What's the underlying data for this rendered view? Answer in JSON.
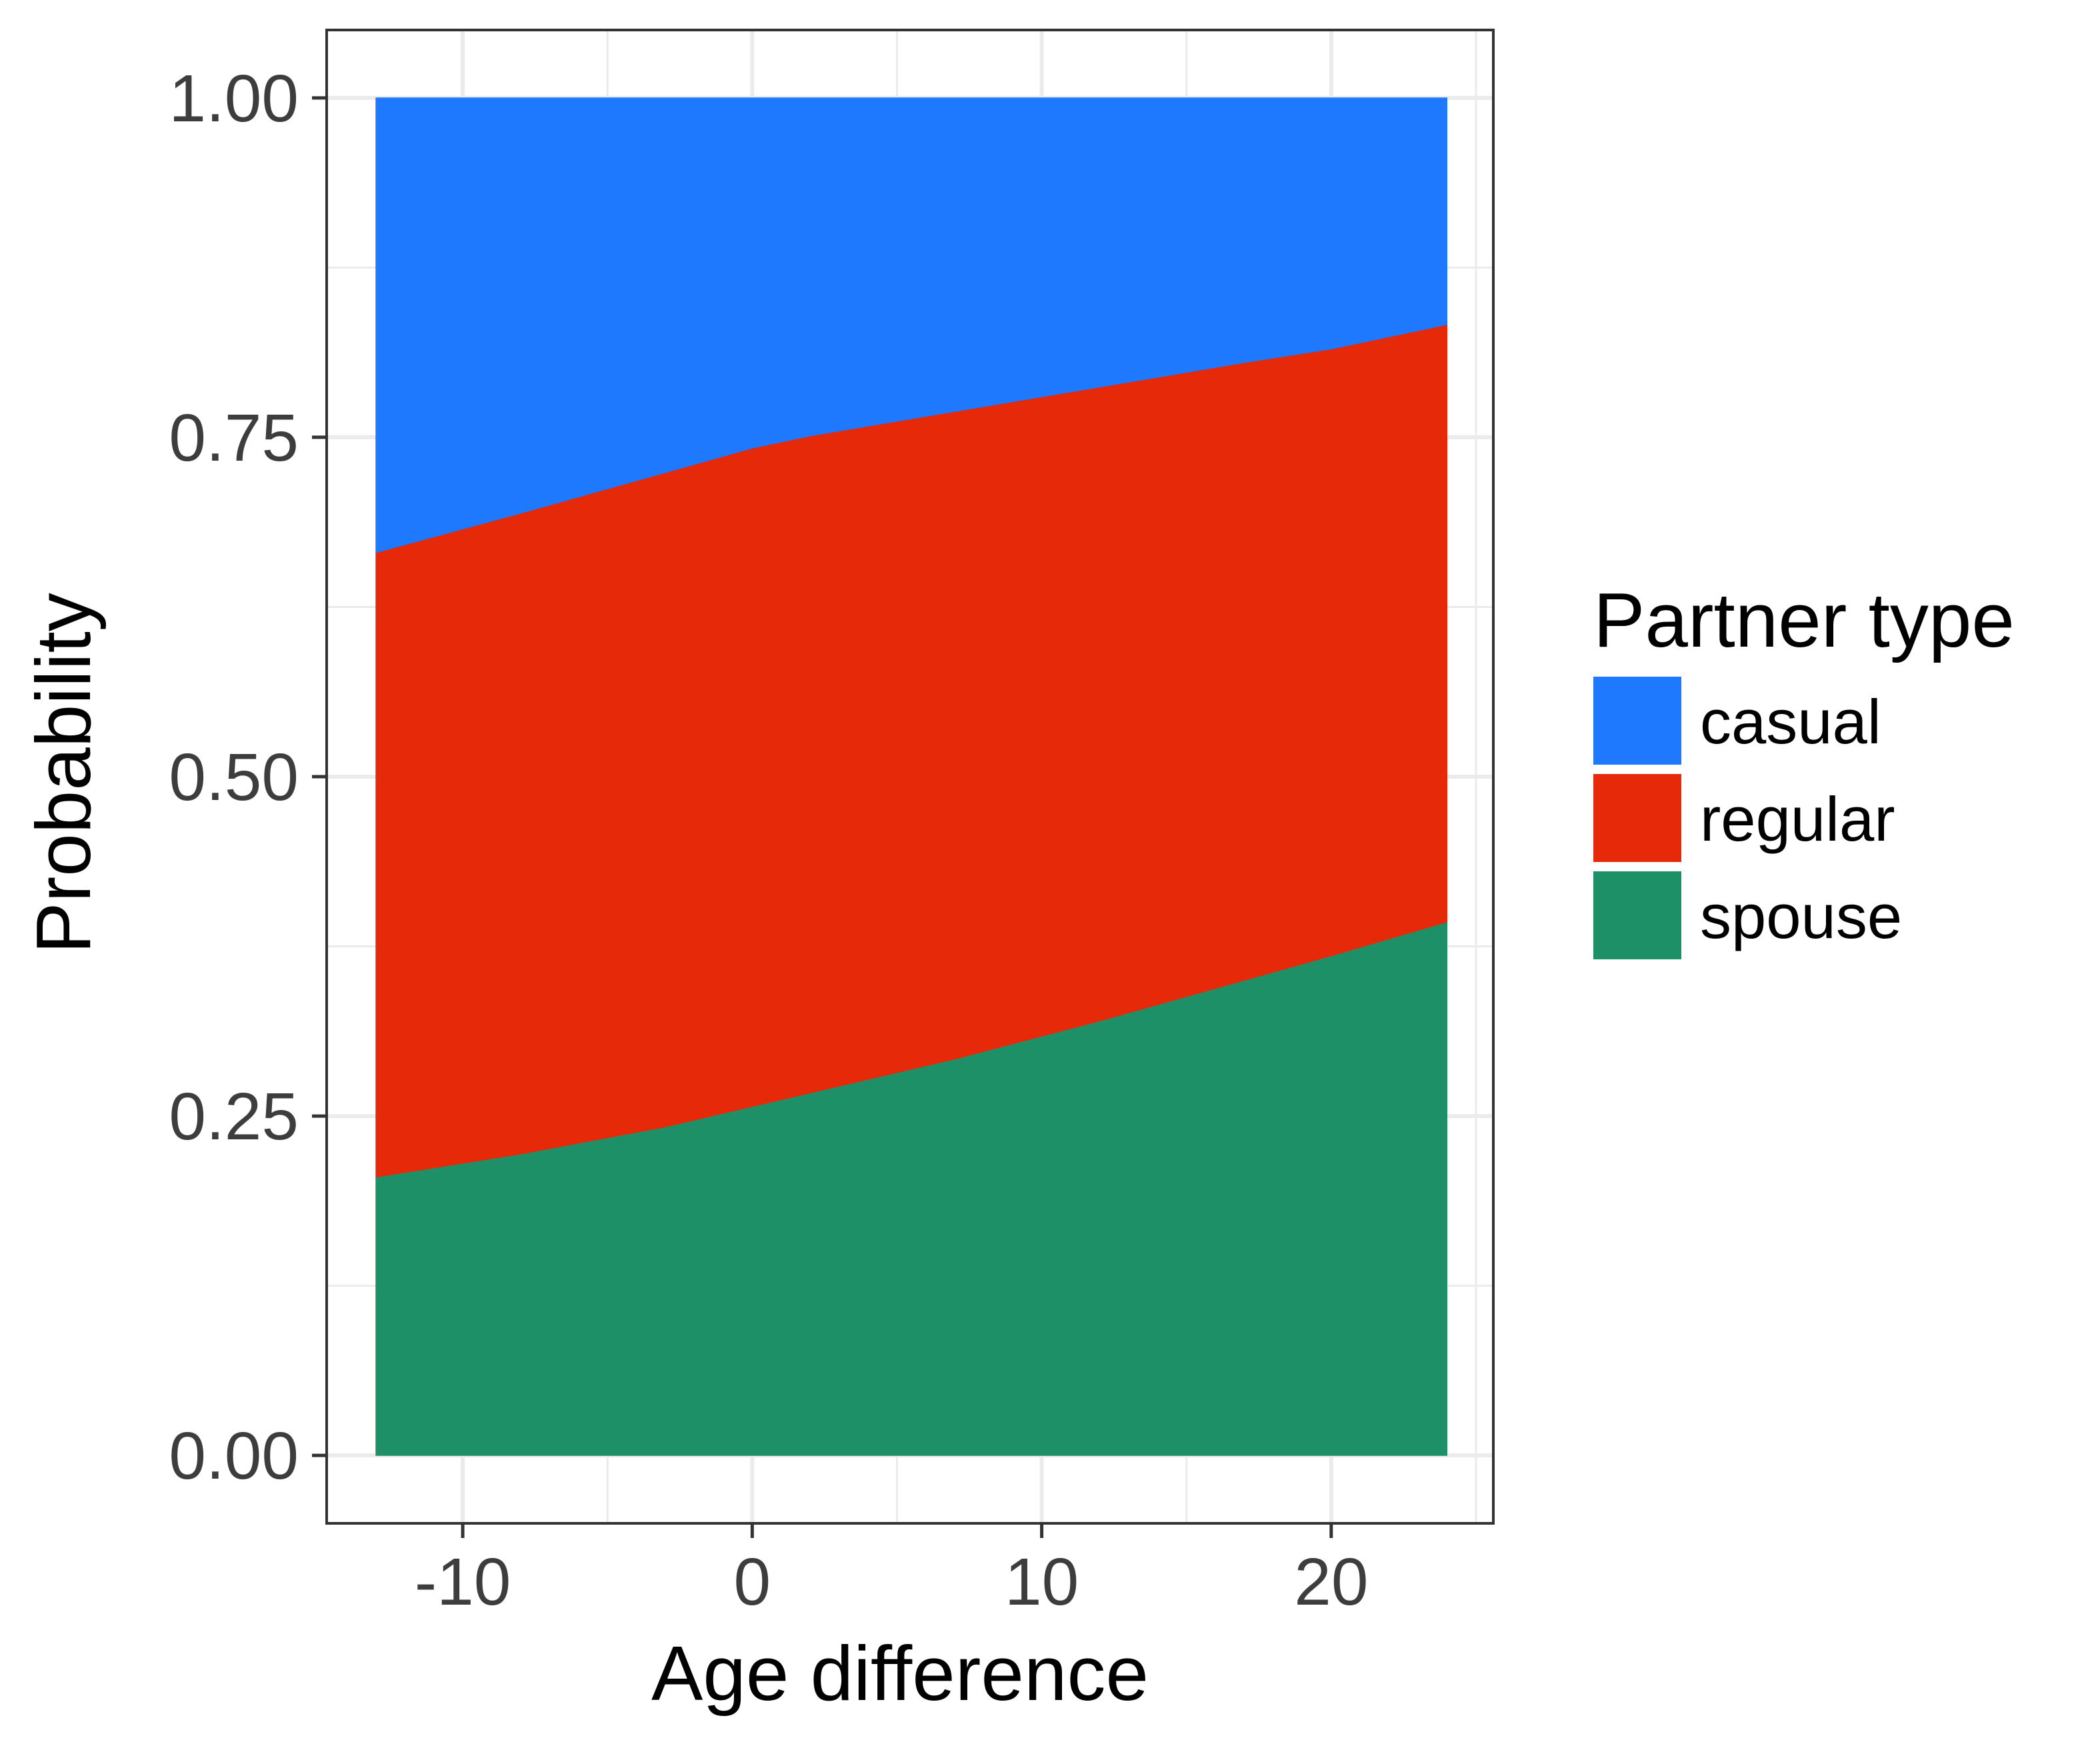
{
  "chart_data": {
    "type": "area",
    "stacked": true,
    "normalized": true,
    "xlabel": "Age difference",
    "ylabel": "Probability",
    "xlim": [
      -14.7,
      25.6
    ],
    "ylim": [
      -0.05,
      1.05
    ],
    "x_ticks": [
      -10,
      0,
      10,
      20
    ],
    "x_tick_labels": [
      "-10",
      "0",
      "10",
      "20"
    ],
    "y_ticks": [
      0,
      0.25,
      0.5,
      0.75,
      1.0
    ],
    "y_tick_labels": [
      "0.00",
      "0.25",
      "0.50",
      "0.75",
      "1.00"
    ],
    "grid": true,
    "legend_position": "right",
    "legend_title": "Partner type",
    "x": [
      -13,
      -8,
      -3,
      0,
      2,
      7,
      12,
      17,
      20,
      24
    ],
    "series": [
      {
        "name": "spouse",
        "color": "#1e9068",
        "values": [
          0.205,
          0.222,
          0.242,
          0.257,
          0.267,
          0.292,
          0.32,
          0.35,
          0.368,
          0.393
        ]
      },
      {
        "name": "regular",
        "color": "#e62a09",
        "values": [
          0.46,
          0.472,
          0.482,
          0.485,
          0.484,
          0.477,
          0.467,
          0.455,
          0.447,
          0.44
        ]
      },
      {
        "name": "casual",
        "color": "#1e79ff",
        "values": [
          0.335,
          0.306,
          0.276,
          0.258,
          0.249,
          0.231,
          0.213,
          0.195,
          0.185,
          0.167
        ]
      }
    ],
    "legend_order": [
      "casual",
      "regular",
      "spouse"
    ]
  }
}
